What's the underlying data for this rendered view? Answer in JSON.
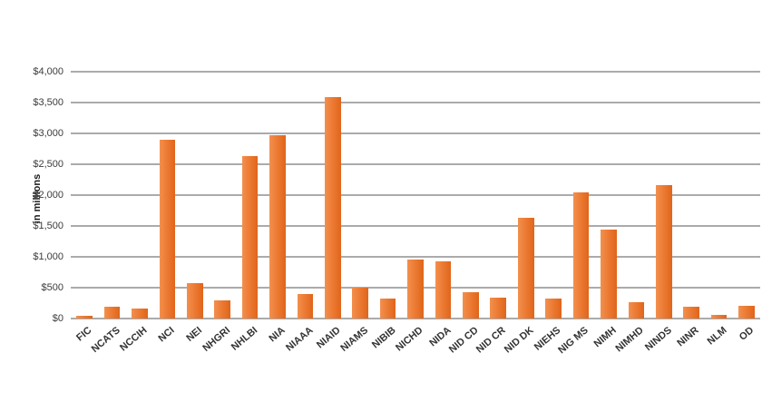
{
  "chart_data": {
    "type": "bar",
    "title": "",
    "xlabel": "",
    "ylabel": "in millions",
    "ylim": [
      0,
      4000
    ],
    "y_tick_step": 500,
    "y_ticks": [
      "$4,000",
      "$3,500",
      "$3,000",
      "$2,500",
      "$2,000",
      "$1,500",
      "$1,000",
      "$500",
      "$0"
    ],
    "grid": true,
    "legend_position": "none",
    "categories": [
      "FIC",
      "NCATS",
      "NCCIH",
      "NCI",
      "NEI",
      "NHGRI",
      "NHLBI",
      "NIA",
      "NIAAA",
      "NIAID",
      "NIAMS",
      "NIBIB",
      "NICHD",
      "NIDA",
      "NID CD",
      "NID CR",
      "NID DK",
      "NIEHS",
      "NIG MS",
      "NIMH",
      "NIMHD",
      "NINDS",
      "NINR",
      "NLM",
      "OD"
    ],
    "values": [
      50,
      190,
      160,
      2900,
      570,
      300,
      2630,
      2970,
      400,
      3590,
      500,
      320,
      960,
      930,
      420,
      340,
      1630,
      320,
      2050,
      1440,
      270,
      2160,
      190,
      55,
      210
    ]
  },
  "colors": {
    "bar": "#EC7A33",
    "bar_gradient_light": "#F2904E",
    "bar_gradient_dark": "#E0651B",
    "gridline": "#ABABAB",
    "axis_text": "#333333",
    "background": "#FFFFFF"
  }
}
